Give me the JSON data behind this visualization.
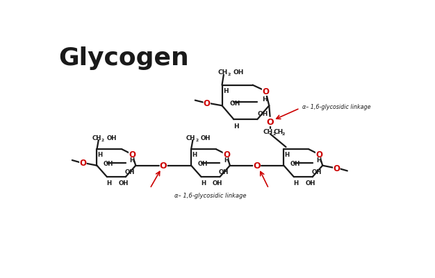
{
  "title": "Glycogen",
  "title_fontsize": 26,
  "title_fontweight": "bold",
  "bg_color": "#ffffff",
  "bond_color": "#1a1a1a",
  "O_color": "#cc0000",
  "text_color": "#1a1a1a",
  "arrow_color": "#cc0000",
  "annotation_top": "α– 1,6-glycosidic linkage",
  "annotation_bot": "α– 1,6-glycosidic linkage",
  "lw": 1.6,
  "fs_label": 7.0,
  "fs_sub": 5.0,
  "fs_O": 8.5
}
